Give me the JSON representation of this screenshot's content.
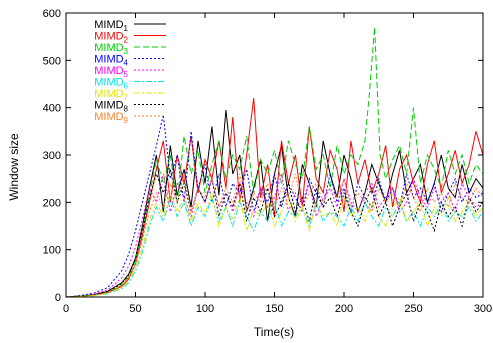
{
  "chart_data": {
    "type": "line",
    "title": "",
    "xlabel": "Time(s)",
    "ylabel": "Window size",
    "xlim": [
      0,
      300
    ],
    "ylim": [
      0,
      600
    ],
    "xticks": [
      0,
      50,
      100,
      150,
      200,
      250,
      300
    ],
    "yticks": [
      0,
      100,
      200,
      300,
      400,
      500,
      600
    ],
    "grid": false,
    "legend_position": "top-left",
    "series": [
      {
        "name": "MIMD1",
        "name_base": "MIMD",
        "name_sub": "1",
        "color": "#000000",
        "dash": "solid",
        "x": [
          0,
          10,
          20,
          30,
          40,
          45,
          50,
          55,
          60,
          65,
          70,
          75,
          80,
          85,
          90,
          95,
          100,
          105,
          110,
          115,
          120,
          125,
          130,
          135,
          140,
          145,
          150,
          155,
          160,
          165,
          170,
          175,
          180,
          185,
          190,
          195,
          200,
          205,
          210,
          215,
          220,
          225,
          230,
          235,
          240,
          245,
          250,
          255,
          260,
          265,
          270,
          275,
          280,
          285,
          290,
          295,
          300
        ],
        "y": [
          0,
          2,
          5,
          12,
          30,
          48,
          82,
          150,
          230,
          300,
          180,
          320,
          215,
          270,
          190,
          330,
          240,
          360,
          215,
          395,
          260,
          300,
          180,
          230,
          290,
          160,
          260,
          320,
          210,
          170,
          280,
          240,
          190,
          330,
          260,
          210,
          300,
          250,
          180,
          220,
          280,
          240,
          200,
          260,
          310,
          220,
          250,
          280,
          200,
          240,
          300,
          230,
          210,
          280,
          220,
          250,
          230
        ]
      },
      {
        "name": "MIMD2",
        "name_base": "MIMD",
        "name_sub": "2",
        "color": "#ff0000",
        "dash": "solid",
        "x": [
          0,
          10,
          20,
          30,
          40,
          45,
          50,
          55,
          60,
          65,
          70,
          75,
          80,
          85,
          90,
          95,
          100,
          105,
          110,
          115,
          120,
          125,
          130,
          135,
          140,
          145,
          150,
          155,
          160,
          165,
          170,
          175,
          180,
          185,
          190,
          195,
          200,
          205,
          210,
          215,
          220,
          225,
          230,
          235,
          240,
          245,
          250,
          255,
          260,
          265,
          270,
          275,
          280,
          285,
          290,
          295,
          300
        ],
        "y": [
          0,
          2,
          4,
          9,
          22,
          38,
          70,
          130,
          200,
          270,
          330,
          200,
          300,
          240,
          340,
          220,
          290,
          250,
          330,
          230,
          380,
          200,
          300,
          420,
          210,
          280,
          170,
          330,
          240,
          300,
          190,
          360,
          250,
          220,
          310,
          270,
          180,
          330,
          240,
          290,
          220,
          260,
          320,
          190,
          270,
          300,
          240,
          200,
          280,
          330,
          220,
          260,
          310,
          240,
          280,
          350,
          300
        ]
      },
      {
        "name": "MIMD3",
        "name_base": "MIMD",
        "name_sub": "3",
        "color": "#00cc00",
        "dash": "dashed",
        "x": [
          0,
          10,
          20,
          30,
          40,
          45,
          50,
          55,
          60,
          65,
          70,
          75,
          80,
          85,
          90,
          95,
          100,
          105,
          110,
          115,
          120,
          125,
          130,
          135,
          140,
          145,
          150,
          155,
          160,
          165,
          170,
          175,
          180,
          185,
          190,
          195,
          200,
          205,
          210,
          215,
          218,
          222,
          226,
          230,
          235,
          240,
          245,
          250,
          255,
          260,
          265,
          270,
          275,
          280,
          285,
          290,
          295,
          300
        ],
        "y": [
          0,
          2,
          4,
          10,
          25,
          42,
          78,
          140,
          215,
          290,
          240,
          300,
          200,
          340,
          260,
          310,
          220,
          280,
          330,
          250,
          300,
          270,
          340,
          220,
          290,
          260,
          310,
          240,
          330,
          280,
          250,
          360,
          270,
          300,
          230,
          320,
          260,
          300,
          280,
          330,
          420,
          570,
          300,
          250,
          290,
          320,
          260,
          400,
          240,
          300,
          270,
          230,
          310,
          260,
          300,
          240,
          280,
          260
        ]
      },
      {
        "name": "MIMD4",
        "name_base": "MIMD",
        "name_sub": "4",
        "color": "#0000ff",
        "dash": "dotted",
        "x": [
          0,
          10,
          20,
          30,
          40,
          45,
          50,
          55,
          60,
          65,
          70,
          75,
          80,
          85,
          90,
          95,
          100,
          105,
          110,
          115,
          120,
          125,
          130,
          135,
          140,
          145,
          150,
          155,
          160,
          165,
          170,
          175,
          180,
          185,
          190,
          195,
          200,
          205,
          210,
          215,
          220,
          225,
          230,
          235,
          240,
          245,
          250,
          255,
          260,
          265,
          270,
          275,
          280,
          285,
          290,
          295,
          300
        ],
        "y": [
          0,
          3,
          8,
          20,
          55,
          90,
          140,
          200,
          260,
          320,
          385,
          250,
          300,
          200,
          350,
          230,
          280,
          200,
          260,
          190,
          240,
          220,
          270,
          180,
          230,
          200,
          260,
          190,
          240,
          210,
          180,
          250,
          220,
          190,
          260,
          200,
          230,
          180,
          240,
          210,
          190,
          250,
          200,
          230,
          190,
          260,
          210,
          230,
          200,
          240,
          180,
          220,
          250,
          200,
          230,
          210,
          220
        ]
      },
      {
        "name": "MIMD5",
        "name_base": "MIMD",
        "name_sub": "5",
        "color": "#ff00ff",
        "dash": "dotted",
        "x": [
          0,
          10,
          20,
          30,
          40,
          45,
          50,
          55,
          60,
          65,
          70,
          75,
          80,
          85,
          90,
          95,
          100,
          105,
          110,
          115,
          120,
          125,
          130,
          135,
          140,
          145,
          150,
          155,
          160,
          165,
          170,
          175,
          180,
          185,
          190,
          195,
          200,
          205,
          210,
          215,
          220,
          225,
          230,
          235,
          240,
          245,
          250,
          255,
          260,
          265,
          270,
          275,
          280,
          285,
          290,
          295,
          300
        ],
        "y": [
          0,
          2,
          6,
          15,
          40,
          65,
          105,
          165,
          230,
          200,
          260,
          180,
          240,
          210,
          170,
          230,
          200,
          250,
          190,
          220,
          180,
          240,
          200,
          170,
          230,
          190,
          210,
          260,
          180,
          220,
          200,
          240,
          170,
          210,
          230,
          190,
          250,
          200,
          180,
          220,
          240,
          190,
          210,
          230,
          180,
          200,
          250,
          210,
          190,
          230,
          200,
          220,
          180,
          240,
          210,
          190,
          200
        ]
      },
      {
        "name": "MIMD6",
        "name_base": "MIMD",
        "name_sub": "6",
        "color": "#00e5e5",
        "dash": "dashdot",
        "x": [
          0,
          10,
          20,
          30,
          40,
          45,
          50,
          55,
          60,
          65,
          70,
          75,
          80,
          85,
          90,
          95,
          100,
          105,
          110,
          115,
          120,
          125,
          130,
          135,
          140,
          145,
          150,
          155,
          160,
          165,
          170,
          175,
          180,
          185,
          190,
          195,
          200,
          205,
          210,
          215,
          220,
          225,
          230,
          235,
          240,
          245,
          250,
          255,
          260,
          265,
          270,
          275,
          280,
          285,
          290,
          295,
          300
        ],
        "y": [
          0,
          1,
          3,
          7,
          18,
          30,
          55,
          95,
          150,
          190,
          160,
          210,
          170,
          200,
          150,
          190,
          170,
          210,
          160,
          190,
          150,
          200,
          170,
          140,
          180,
          160,
          200,
          150,
          180,
          170,
          190,
          150,
          200,
          160,
          180,
          170,
          150,
          190,
          160,
          200,
          170,
          150,
          190,
          170,
          200,
          160,
          180,
          150,
          190,
          170,
          200,
          160,
          180,
          170,
          190,
          160,
          180
        ]
      },
      {
        "name": "MIMD7",
        "name_base": "MIMD",
        "name_sub": "7",
        "color": "#e5e500",
        "dash": "dashdot",
        "x": [
          0,
          10,
          20,
          30,
          40,
          45,
          50,
          55,
          60,
          65,
          70,
          75,
          80,
          85,
          90,
          95,
          100,
          105,
          110,
          115,
          120,
          125,
          130,
          135,
          140,
          145,
          150,
          155,
          160,
          165,
          170,
          175,
          180,
          185,
          190,
          195,
          200,
          205,
          210,
          215,
          220,
          225,
          230,
          235,
          240,
          245,
          250,
          255,
          260,
          265,
          270,
          275,
          280,
          285,
          290,
          295,
          300
        ],
        "y": [
          0,
          1,
          3,
          8,
          20,
          34,
          60,
          105,
          160,
          200,
          170,
          220,
          180,
          210,
          160,
          200,
          175,
          220,
          150,
          190,
          165,
          210,
          140,
          185,
          170,
          200,
          150,
          180,
          210,
          160,
          190,
          140,
          200,
          170,
          180,
          150,
          210,
          170,
          190,
          160,
          200,
          170,
          150,
          190,
          210,
          160,
          180,
          200,
          150,
          190,
          170,
          210,
          160,
          180,
          200,
          170,
          190
        ]
      },
      {
        "name": "MIMD8",
        "name_base": "MIMD",
        "name_sub": "8",
        "color": "#000000",
        "dash": "dotted",
        "x": [
          0,
          10,
          20,
          30,
          40,
          45,
          50,
          55,
          60,
          65,
          70,
          75,
          80,
          85,
          90,
          95,
          100,
          105,
          110,
          115,
          120,
          125,
          130,
          135,
          140,
          145,
          150,
          155,
          160,
          165,
          170,
          175,
          180,
          185,
          190,
          195,
          200,
          205,
          210,
          215,
          220,
          225,
          230,
          235,
          240,
          245,
          250,
          255,
          260,
          265,
          270,
          275,
          280,
          285,
          290,
          295,
          300
        ],
        "y": [
          0,
          2,
          5,
          11,
          28,
          46,
          80,
          140,
          210,
          260,
          220,
          270,
          200,
          240,
          180,
          230,
          200,
          250,
          170,
          220,
          190,
          240,
          160,
          210,
          180,
          230,
          170,
          200,
          240,
          180,
          210,
          160,
          230,
          190,
          210,
          170,
          220,
          180,
          150,
          200,
          230,
          170,
          200,
          150,
          190,
          220,
          160,
          200,
          180,
          140,
          200,
          170,
          190,
          150,
          210,
          180,
          200
        ]
      },
      {
        "name": "MIMD9",
        "name_base": "MIMD",
        "name_sub": "9",
        "color": "#ff7f2a",
        "dash": "dotted",
        "x": [
          0,
          10,
          20,
          30,
          40,
          45,
          50,
          55,
          60,
          65,
          70,
          75,
          80,
          85,
          90,
          95,
          100,
          105,
          110,
          115,
          120,
          125,
          130,
          135,
          140,
          145,
          150,
          155,
          160,
          165,
          170,
          175,
          180,
          185,
          190,
          195,
          200,
          205,
          210,
          215,
          220,
          225,
          230,
          235,
          240,
          245,
          250,
          255,
          260,
          265,
          270,
          275,
          280,
          285,
          290,
          295,
          300
        ],
        "y": [
          0,
          1,
          4,
          9,
          24,
          40,
          70,
          120,
          180,
          220,
          190,
          240,
          200,
          260,
          180,
          230,
          210,
          250,
          190,
          230,
          200,
          260,
          180,
          220,
          200,
          240,
          190,
          230,
          210,
          260,
          190,
          220,
          240,
          200,
          230,
          210,
          250,
          190,
          220,
          200,
          180,
          230,
          200,
          220,
          190,
          240,
          210,
          180,
          230,
          200,
          220,
          190,
          240,
          210,
          200,
          230,
          210
        ]
      }
    ]
  }
}
